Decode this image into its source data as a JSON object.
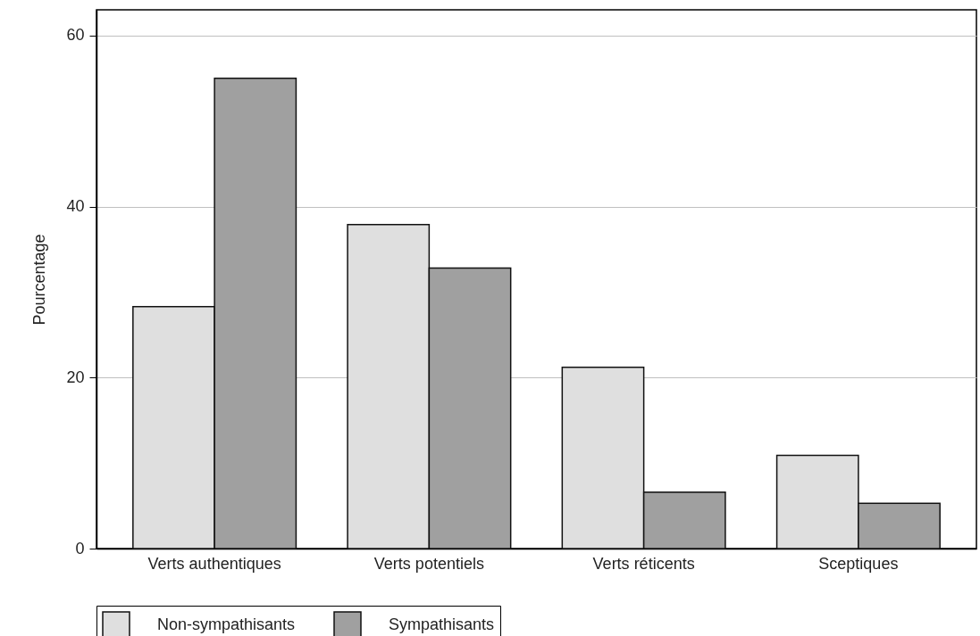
{
  "chart_data": {
    "type": "bar",
    "ylabel": "Pourcentage",
    "categories": [
      "Verts authentiques",
      "Verts potentiels",
      "Verts réticents",
      "Sceptiques"
    ],
    "series": [
      {
        "name": "Non-sympathisants",
        "color": "#dfdfdf",
        "values": [
          28.3,
          37.9,
          21.2,
          10.9
        ]
      },
      {
        "name": "Sympathisants",
        "color": "#a0a0a0",
        "values": [
          55.0,
          32.8,
          6.6,
          5.3
        ]
      }
    ],
    "ylim": [
      0,
      63
    ],
    "yticks": [
      0,
      20,
      40,
      60
    ],
    "grid": "y",
    "legend": "bottom"
  }
}
